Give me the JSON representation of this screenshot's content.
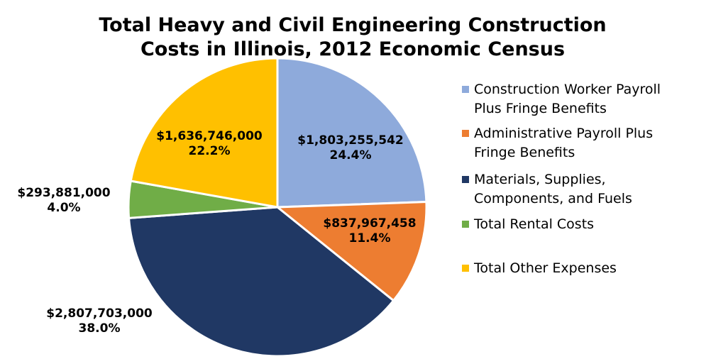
{
  "chart_data": {
    "type": "pie",
    "title": "Total Heavy and Civil Engineering Construction Costs in Illinois, 2012 Economic Census",
    "title_lines": [
      "Total Heavy and Civil Engineering Construction",
      "Costs in Illinois, 2012 Economic Census"
    ],
    "legend_position": "right",
    "slices": [
      {
        "label": "Construction Worker Payroll Plus Fringe Benefits",
        "legend_lines": [
          "Construction Worker Payroll",
          "Plus Fringe Benefits"
        ],
        "value": 1803255542,
        "value_label": "$1,803,255,542",
        "percent": 24.4,
        "percent_label": "24.4%",
        "color": "#8eaadb"
      },
      {
        "label": "Administrative Payroll Plus Fringe Benefits",
        "legend_lines": [
          "Administrative Payroll Plus",
          "Fringe Benefits"
        ],
        "value": 837967458,
        "value_label": "$837,967,458",
        "percent": 11.4,
        "percent_label": "11.4%",
        "color": "#ed7d31"
      },
      {
        "label": "Materials, Supplies, Components, and Fuels",
        "legend_lines": [
          "Materials, Supplies,",
          "Components, and Fuels"
        ],
        "value": 2807703000,
        "value_label": "$2,807,703,000",
        "percent": 38.0,
        "percent_label": "38.0%",
        "color": "#203864"
      },
      {
        "label": "Total Rental Costs",
        "legend_lines": [
          "Total Rental Costs"
        ],
        "value": 293881000,
        "value_label": "$293,881,000",
        "percent": 4.0,
        "percent_label": "4.0%",
        "color": "#70ad47"
      },
      {
        "label": "Total Other Expenses",
        "legend_lines": [
          "Total Other Expenses"
        ],
        "value": 1636746000,
        "value_label": "$1,636,746,000",
        "percent": 22.2,
        "percent_label": "22.2%",
        "color": "#ffc000"
      }
    ]
  }
}
